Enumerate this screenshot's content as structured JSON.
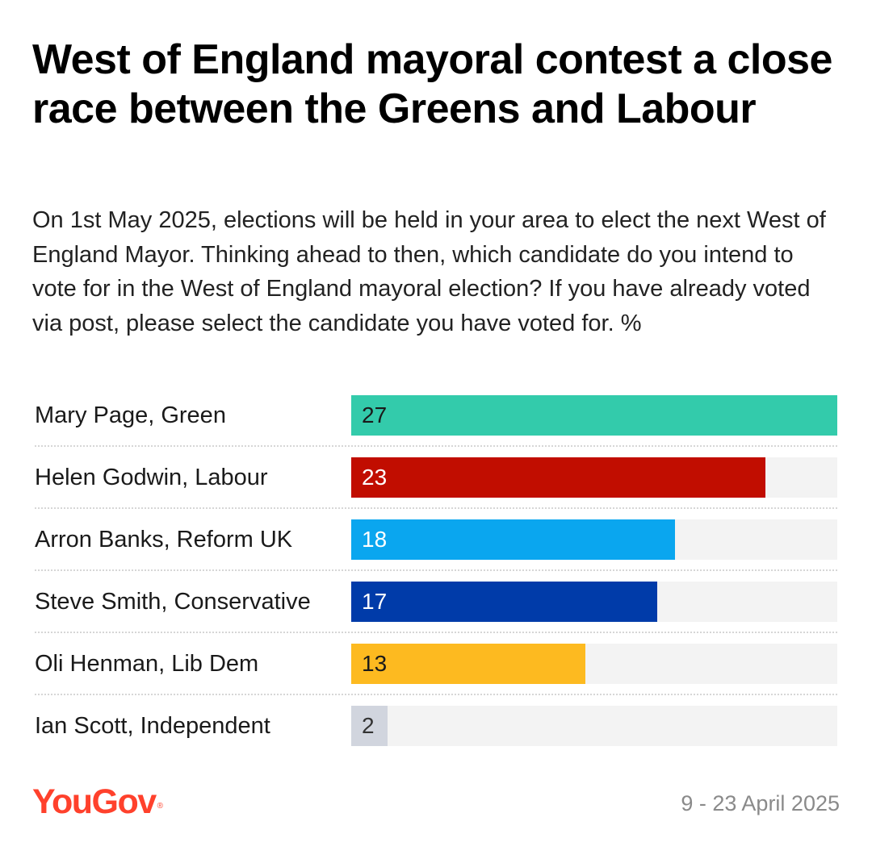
{
  "title": "West of England mayoral contest a close race between the Greens and Labour",
  "subtitle": "On 1st May 2025, elections will be held in your area to elect the next West of England Mayor. Thinking ahead to then, which candidate do you intend to vote for in the West of England mayoral election? If you have already voted via post, please select the candidate you have voted for. %",
  "chart_data": {
    "type": "bar",
    "orientation": "horizontal",
    "categories": [
      "Mary Page, Green",
      "Helen Godwin, Labour",
      "Arron Banks, Reform UK",
      "Steve Smith, Conservative",
      "Oli Henman, Lib Dem",
      "Ian Scott, Independent"
    ],
    "values": [
      27,
      23,
      18,
      17,
      13,
      2
    ],
    "value_labels": [
      "27",
      "23",
      "18",
      "17",
      "13",
      "2"
    ],
    "colors": [
      "#33cbab",
      "#c10d00",
      "#0aa6ef",
      "#003ba9",
      "#fdba20",
      "#d1d5de"
    ],
    "label_colors": [
      "#1a1a1a",
      "#ffffff",
      "#ffffff",
      "#ffffff",
      "#1a1a1a",
      "#333333"
    ],
    "track_color": "#f3f3f3",
    "xlim": [
      0,
      27
    ],
    "grid": false,
    "legend": "none"
  },
  "footer": {
    "logo": "YouGov",
    "logo_mark": "®",
    "logo_color": "#ff412c",
    "date": "9 - 23 April 2025"
  }
}
